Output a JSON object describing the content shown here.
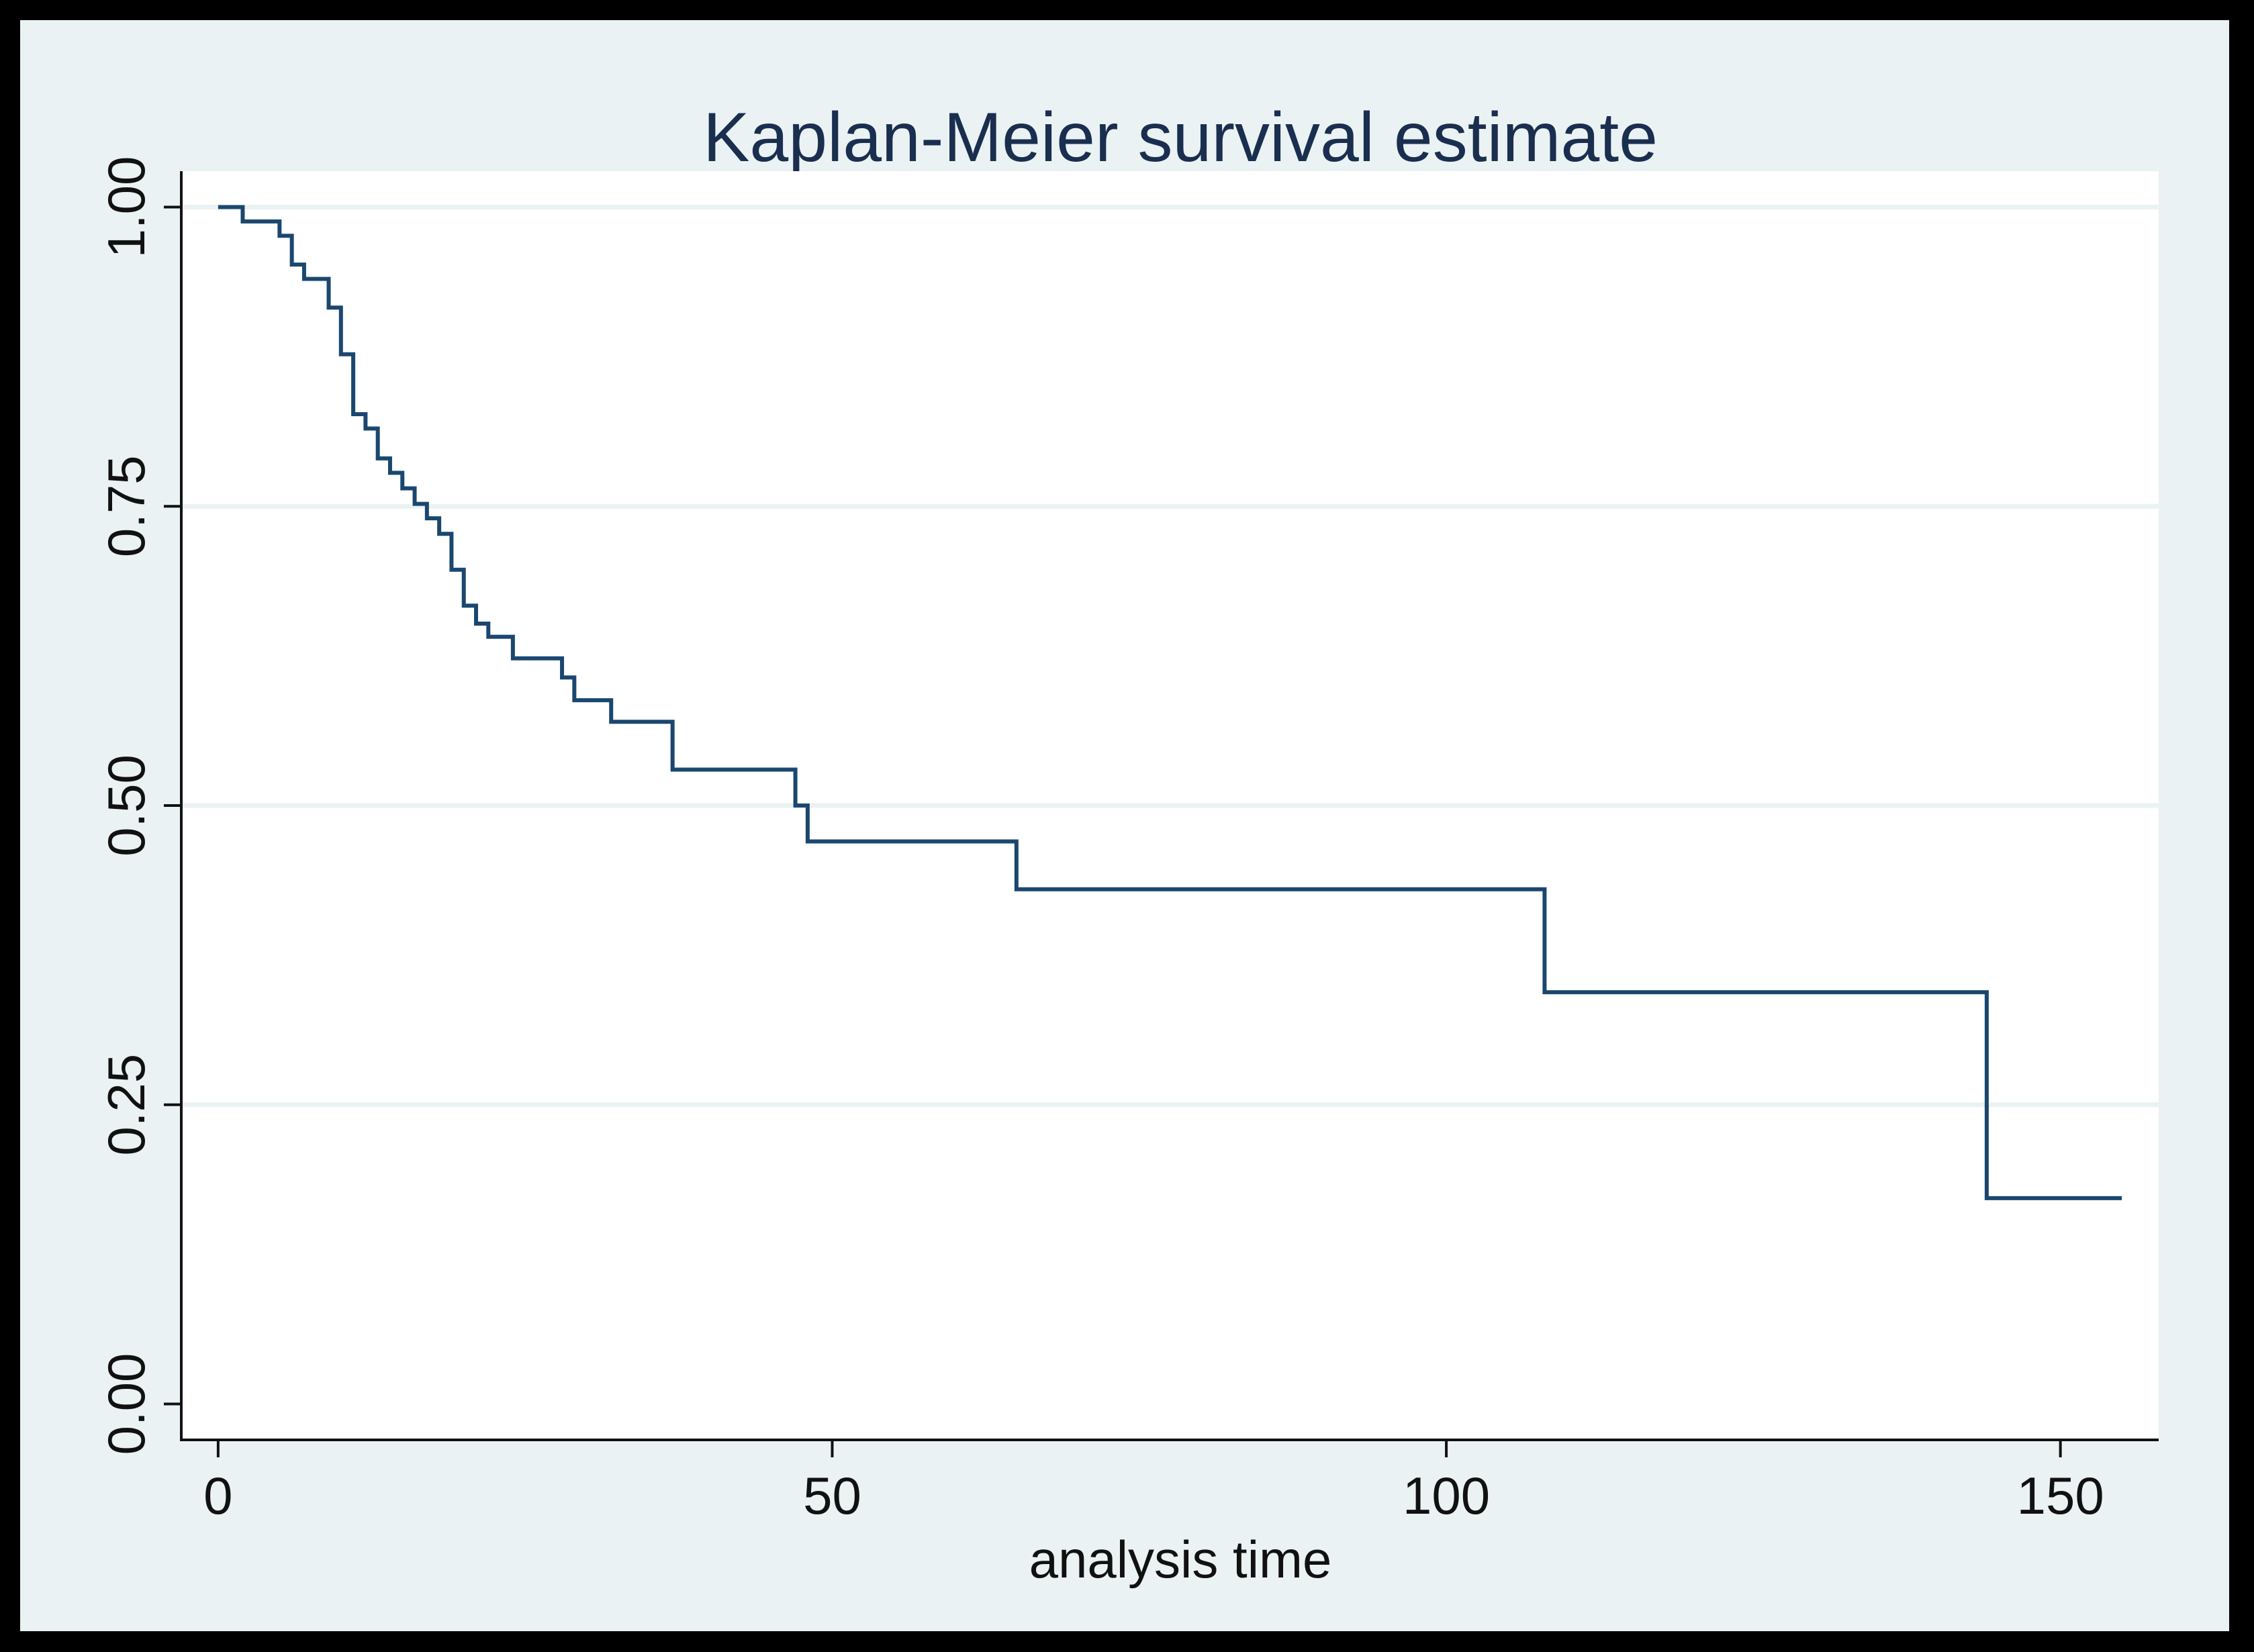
{
  "chart_data": {
    "type": "line",
    "step": true,
    "title": "Kaplan-Meier survival estimate",
    "xlabel": "analysis time",
    "ylabel": "",
    "xlim": [
      -3,
      158
    ],
    "ylim": [
      -0.03,
      1.03
    ],
    "x_ticks": [
      0,
      50,
      100,
      150
    ],
    "x_tick_labels": [
      "0",
      "50",
      "100",
      "150"
    ],
    "y_ticks": [
      0,
      0.25,
      0.5,
      0.75,
      1.0
    ],
    "y_tick_labels": [
      "0.00",
      "0.25",
      "0.50",
      "0.75",
      "1.00"
    ],
    "grid": "horizontal",
    "legend": "none",
    "colors": {
      "line": "#1A476F",
      "plot_background": "#FFFFFF",
      "outer_background": "#EAF2F3",
      "border": "#000000",
      "title": "#1A2E4F"
    },
    "series": [
      {
        "x": [
          0,
          2,
          5,
          6,
          7,
          9,
          10,
          11,
          12,
          13,
          14,
          15,
          16,
          17,
          18,
          19,
          20,
          21,
          22,
          24,
          28,
          29,
          32,
          37,
          47,
          48,
          65,
          108,
          144,
          155
        ],
        "y": [
          1.0,
          0.988,
          0.976,
          0.952,
          0.94,
          0.916,
          0.877,
          0.827,
          0.815,
          0.79,
          0.778,
          0.765,
          0.752,
          0.74,
          0.727,
          0.697,
          0.667,
          0.652,
          0.641,
          0.623,
          0.607,
          0.588,
          0.57,
          0.53,
          0.5,
          0.47,
          0.43,
          0.344,
          0.172,
          0.172
        ]
      }
    ]
  }
}
